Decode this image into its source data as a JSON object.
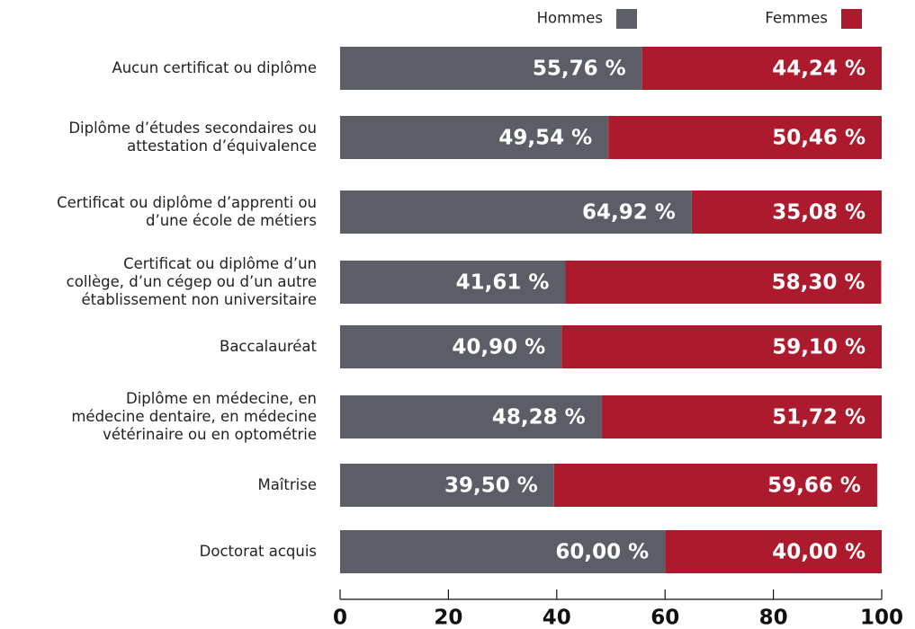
{
  "chart_data": {
    "type": "stacked-barh",
    "categories": [
      "Aucun certificat ou diplôme",
      "Diplôme d’études secondaires ou\nattestation d’équivalence",
      "Certificat ou diplôme d’apprenti ou\nd’une école de métiers",
      "Certificat ou diplôme d’un\ncollège, d’un cégep ou d’un autre\nétablissement non universitaire",
      "Baccalauréat",
      "Diplôme en médecine, en\nmédecine dentaire, en médecine\nvétérinaire ou en optométrie",
      "Maîtrise",
      "Doctorat acquis"
    ],
    "series": [
      {
        "name": "Hommes",
        "color": "#5b5e66",
        "values": [
          55.76,
          49.54,
          64.92,
          41.61,
          40.9,
          48.28,
          39.5,
          60.0
        ],
        "value_labels": [
          "55,76 %",
          "49,54 %",
          "64,92 %",
          "41,61 %",
          "40,90 %",
          "48,28 %",
          "39,50 %",
          "60,00 %"
        ]
      },
      {
        "name": "Femmes",
        "color": "#ae1a2d",
        "values": [
          44.24,
          50.46,
          35.08,
          58.3,
          59.1,
          51.72,
          59.66,
          40.0
        ],
        "value_labels": [
          "44,24 %",
          "50,46 %",
          "35,08 %",
          "58,30 %",
          "59,10 %",
          "51,72 %",
          "59,66 %",
          "40,00 %"
        ]
      }
    ],
    "xlim": [
      0,
      100
    ],
    "xticks": [
      0,
      20,
      40,
      60,
      80,
      100
    ],
    "legend": "top-right"
  }
}
